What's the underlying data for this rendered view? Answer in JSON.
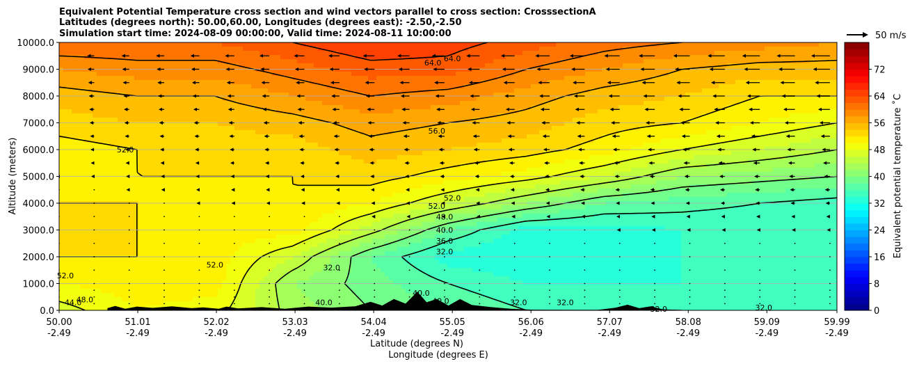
{
  "chart_data": {
    "type": "heatmap",
    "title_lines": [
      "Equivalent Potential Temperature cross section and wind vectors parallel to cross section: CrosssectionA",
      "Latitudes (degrees north): 50.00,60.00, Longitudes (degrees east): -2.50,-2.50",
      "Simulation start time: 2024-08-09 00:00:00, Valid time: 2024-08-11 10:00:00"
    ],
    "ylabel": "Altitude (meters)",
    "xlabel_lines": [
      "Latitude (degrees N)",
      "Longitude (degrees E)"
    ],
    "ylim": [
      0,
      10000
    ],
    "y_ticks": [
      0,
      1000,
      2000,
      3000,
      4000,
      5000,
      6000,
      7000,
      8000,
      9000,
      10000
    ],
    "y_tick_labels": [
      "0.0",
      "1000.0",
      "2000.0",
      "3000.0",
      "4000.0",
      "5000.0",
      "6000.0",
      "7000.0",
      "8000.0",
      "9000.0",
      "10000.0"
    ],
    "xlim": [
      50.0,
      59.99
    ],
    "x_ticks": [
      50.0,
      51.01,
      52.02,
      53.03,
      54.04,
      55.05,
      56.06,
      57.07,
      58.08,
      59.09,
      59.99
    ],
    "x_tick_lat_labels": [
      "50.00",
      "51.01",
      "52.02",
      "53.03",
      "54.04",
      "55.05",
      "56.06",
      "57.07",
      "58.08",
      "59.09",
      "59.99"
    ],
    "x_tick_lon_labels": [
      "-2.49",
      "-2.49",
      "-2.49",
      "-2.49",
      "-2.49",
      "-2.49",
      "-2.49",
      "-2.49",
      "-2.49",
      "-2.49",
      "-2.49"
    ],
    "grid": "horizontal",
    "colorbar": {
      "label": "Equivalent potential temperature ˚C",
      "range": [
        0,
        80
      ],
      "ticks": [
        0,
        8,
        16,
        24,
        32,
        40,
        48,
        56,
        64,
        72
      ],
      "colormap": "jet"
    },
    "quiver_key": {
      "label": "50 m/s",
      "speed": 50
    },
    "contour_levels": [
      32,
      36,
      40,
      44,
      48,
      52,
      56,
      60,
      64
    ],
    "contour_labels": [
      {
        "text": "64.0",
        "x": 54.8,
        "y": 9250
      },
      {
        "text": "64.0",
        "x": 55.05,
        "y": 9400
      },
      {
        "text": "56.0",
        "x": 54.85,
        "y": 6700
      },
      {
        "text": "52.0",
        "x": 50.85,
        "y": 6000
      },
      {
        "text": "52.0",
        "x": 55.05,
        "y": 4200
      },
      {
        "text": "52.0",
        "x": 54.85,
        "y": 3900
      },
      {
        "text": "48.0",
        "x": 54.95,
        "y": 3500
      },
      {
        "text": "40.0",
        "x": 54.95,
        "y": 3000
      },
      {
        "text": "36.0",
        "x": 54.95,
        "y": 2600
      },
      {
        "text": "32.0",
        "x": 54.95,
        "y": 2200
      },
      {
        "text": "52.0",
        "x": 52.0,
        "y": 1700
      },
      {
        "text": "32.0",
        "x": 53.5,
        "y": 1600
      },
      {
        "text": "52.0",
        "x": 50.08,
        "y": 1300
      },
      {
        "text": "48.0",
        "x": 50.33,
        "y": 400
      },
      {
        "text": "44.0",
        "x": 50.18,
        "y": 300
      },
      {
        "text": "40.0",
        "x": 53.4,
        "y": 300
      },
      {
        "text": "40.0",
        "x": 54.65,
        "y": 650
      },
      {
        "text": "40.0",
        "x": 54.9,
        "y": 350
      },
      {
        "text": "32.0",
        "x": 55.9,
        "y": 300
      },
      {
        "text": "32.0",
        "x": 56.5,
        "y": 300
      },
      {
        "text": "32.0",
        "x": 57.7,
        "y": 50
      },
      {
        "text": "32.0",
        "x": 59.05,
        "y": 100
      }
    ],
    "theta_e_profiles": [
      {
        "x": 50.0,
        "theta": [
          47,
          50,
          52,
          52,
          52,
          51,
          51,
          53,
          55,
          58,
          62
        ]
      },
      {
        "x": 51.0,
        "theta": [
          50,
          51,
          52,
          52,
          52,
          52,
          52,
          54,
          56,
          59,
          62
        ]
      },
      {
        "x": 52.0,
        "theta": [
          49,
          51,
          51,
          51,
          51,
          52,
          53,
          54,
          56,
          59,
          62
        ]
      },
      {
        "x": 53.0,
        "theta": [
          43,
          42,
          46,
          51,
          52,
          52,
          53,
          55,
          58,
          61,
          64
        ]
      },
      {
        "x": 54.0,
        "theta": [
          40,
          39,
          38,
          45,
          50,
          53,
          55,
          57,
          60,
          63,
          66
        ]
      },
      {
        "x": 55.0,
        "theta": [
          38,
          36,
          33,
          38,
          46,
          51,
          54,
          56,
          59,
          63,
          65
        ]
      },
      {
        "x": 56.0,
        "theta": [
          36,
          34,
          32,
          33,
          42,
          49,
          53,
          55,
          57,
          60,
          63
        ]
      },
      {
        "x": 57.0,
        "theta": [
          36,
          34,
          33,
          33,
          38,
          46,
          51,
          53,
          55,
          58,
          61
        ]
      },
      {
        "x": 58.0,
        "theta": [
          36,
          34,
          34,
          34,
          37,
          42,
          48,
          52,
          54,
          56,
          60
        ]
      },
      {
        "x": 59.0,
        "theta": [
          35,
          34,
          34,
          34,
          36,
          41,
          46,
          50,
          52,
          55,
          59
        ]
      },
      {
        "x": 59.99,
        "theta": [
          35,
          34,
          34,
          34,
          35,
          40,
          44,
          48,
          52,
          55,
          58
        ]
      }
    ],
    "theta_e_profile_heights": [
      0,
      1000,
      2000,
      3000,
      4000,
      5000,
      6000,
      7000,
      8000,
      9000,
      10000
    ],
    "wind_rows_m": [
      250,
      500,
      750,
      1000,
      1500,
      2000,
      2500,
      3000,
      3500,
      4000,
      4500,
      5000,
      5500,
      6000,
      6500,
      7000,
      7500,
      8000,
      8500,
      9000,
      9500
    ],
    "wind_cols_lat": [
      50.0,
      50.45,
      50.9,
      51.35,
      51.8,
      52.25,
      52.7,
      53.15,
      53.6,
      54.05,
      54.5,
      54.95,
      55.4,
      55.85,
      56.3,
      56.75,
      57.2,
      57.65,
      58.1,
      58.55,
      59.0,
      59.45,
      59.9
    ],
    "terrain": [
      {
        "x": 50.62,
        "h": 80
      },
      {
        "x": 50.72,
        "h": 160
      },
      {
        "x": 50.85,
        "h": 60
      },
      {
        "x": 51.0,
        "h": 140
      },
      {
        "x": 51.2,
        "h": 90
      },
      {
        "x": 51.45,
        "h": 150
      },
      {
        "x": 51.7,
        "h": 80
      },
      {
        "x": 51.85,
        "h": 110
      },
      {
        "x": 52.05,
        "h": 60
      },
      {
        "x": 52.15,
        "h": 140
      },
      {
        "x": 52.3,
        "h": 70
      },
      {
        "x": 52.6,
        "h": 120
      },
      {
        "x": 52.9,
        "h": 60
      },
      {
        "x": 53.2,
        "h": 140
      },
      {
        "x": 53.5,
        "h": 100
      },
      {
        "x": 53.8,
        "h": 150
      },
      {
        "x": 54.0,
        "h": 320
      },
      {
        "x": 54.15,
        "h": 180
      },
      {
        "x": 54.3,
        "h": 420
      },
      {
        "x": 54.45,
        "h": 250
      },
      {
        "x": 54.6,
        "h": 700
      },
      {
        "x": 54.72,
        "h": 300
      },
      {
        "x": 54.85,
        "h": 420
      },
      {
        "x": 55.0,
        "h": 180
      },
      {
        "x": 55.15,
        "h": 420
      },
      {
        "x": 55.3,
        "h": 200
      },
      {
        "x": 55.55,
        "h": 120
      },
      {
        "x": 55.8,
        "h": 60
      },
      {
        "x": 56.1,
        "h": 20
      },
      {
        "x": 56.9,
        "h": 10
      },
      {
        "x": 57.15,
        "h": 100
      },
      {
        "x": 57.3,
        "h": 210
      },
      {
        "x": 57.45,
        "h": 80
      },
      {
        "x": 57.6,
        "h": 150
      },
      {
        "x": 57.75,
        "h": 40
      },
      {
        "x": 58.0,
        "h": 10
      }
    ]
  }
}
